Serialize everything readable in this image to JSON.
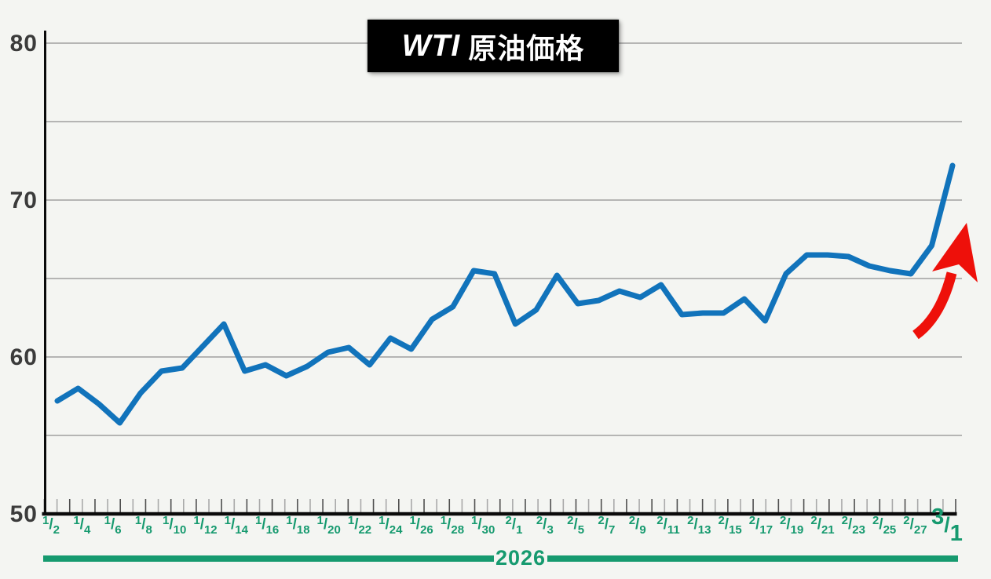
{
  "title": {
    "brand": "WTI",
    "suffix": "原油価格"
  },
  "period_label": "2026",
  "colors": {
    "line_blue": "#1173bb",
    "accent_green": "#169a6f",
    "arrow_red": "#ee100a",
    "grid_gray": "#8f8f8f",
    "axis_black": "#0a0a0a",
    "ylabel_gray": "#3b3b3b",
    "background": "#f4f5f2",
    "title_bg": "#000000",
    "title_fg": "#ffffff"
  },
  "chart_data": {
    "type": "line",
    "title": "WTI原油価格",
    "x_tick_labels": [
      "1/2",
      "1/4",
      "1/6",
      "1/8",
      "1/10",
      "1/12",
      "1/14",
      "1/16",
      "1/18",
      "1/20",
      "1/22",
      "1/24",
      "1/26",
      "1/28",
      "1/30",
      "2/1",
      "2/3",
      "2/5",
      "2/7",
      "2/9",
      "2/11",
      "2/13",
      "2/15",
      "2/17",
      "2/19",
      "2/21",
      "2/23",
      "2/25",
      "2/27",
      "3/1"
    ],
    "x_last_label_emphasized": "3/1",
    "year": "2026",
    "y_axis_labels": [
      80,
      70,
      60,
      50
    ],
    "gridline_values": [
      80,
      75,
      70,
      65,
      60,
      55
    ],
    "ylim": [
      50,
      82
    ],
    "xlabel": "",
    "ylabel": "",
    "legend": "none",
    "values": [
      57.2,
      58.0,
      57.0,
      55.8,
      57.7,
      59.1,
      59.3,
      60.7,
      62.1,
      59.1,
      59.5,
      58.8,
      59.4,
      60.3,
      60.6,
      59.5,
      61.2,
      60.5,
      62.4,
      63.2,
      65.5,
      65.3,
      62.1,
      63.0,
      65.2,
      63.4,
      63.6,
      64.2,
      63.8,
      64.6,
      62.7,
      62.8,
      62.8,
      63.7,
      62.3,
      65.3,
      66.5,
      66.5,
      66.4,
      65.8,
      65.5,
      65.3,
      67.1,
      72.2
    ],
    "annotation": {
      "type": "curved-up-arrow",
      "color": "#ee100a",
      "position": "lower-right-of-final-surge"
    }
  }
}
